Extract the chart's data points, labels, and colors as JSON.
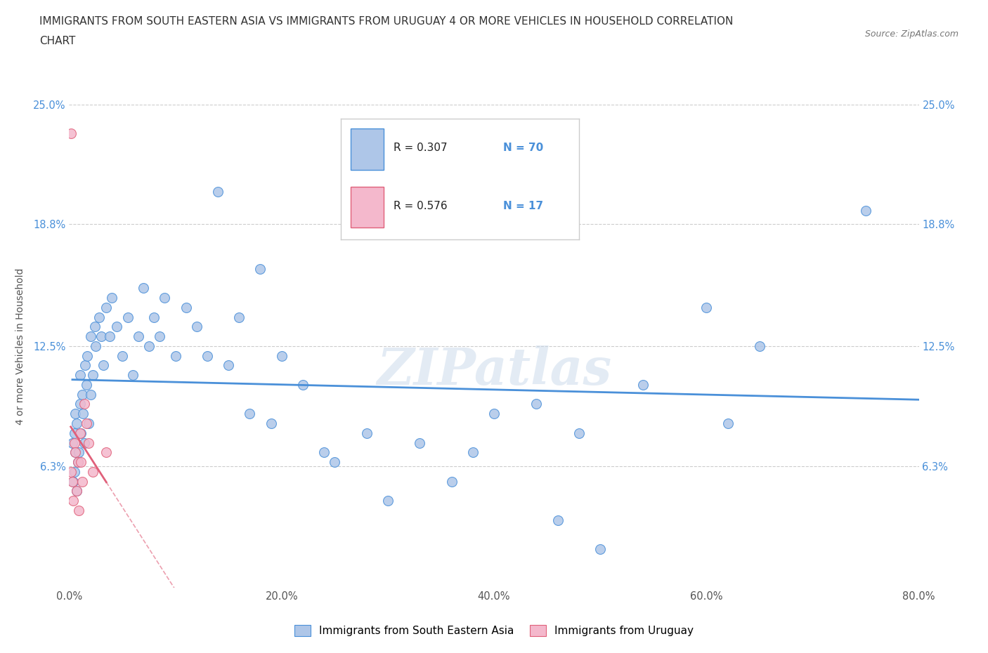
{
  "title_line1": "IMMIGRANTS FROM SOUTH EASTERN ASIA VS IMMIGRANTS FROM URUGUAY 4 OR MORE VEHICLES IN HOUSEHOLD CORRELATION",
  "title_line2": "CHART",
  "source_text": "Source: ZipAtlas.com",
  "ylabel": "4 or more Vehicles in Household",
  "legend_label1": "Immigrants from South Eastern Asia",
  "legend_label2": "Immigrants from Uruguay",
  "R1": 0.307,
  "N1": 70,
  "R2": 0.576,
  "N2": 17,
  "color1": "#aec6e8",
  "color2": "#f4b8cc",
  "line_color1": "#4a90d9",
  "line_color2": "#e0607a",
  "watermark": "ZIPatlas",
  "xlim": [
    0.0,
    80.0
  ],
  "ylim": [
    0.0,
    25.0
  ],
  "xticks": [
    0.0,
    20.0,
    40.0,
    60.0,
    80.0
  ],
  "yticks": [
    0.0,
    6.3,
    12.5,
    18.8,
    25.0
  ],
  "xtick_labels": [
    "0.0%",
    "20.0%",
    "40.0%",
    "60.0%",
    "80.0%"
  ],
  "ytick_labels": [
    "",
    "6.3%",
    "12.5%",
    "18.8%",
    "25.0%"
  ],
  "scatter1_x": [
    0.3,
    0.4,
    0.5,
    0.5,
    0.6,
    0.6,
    0.7,
    0.7,
    0.8,
    0.9,
    1.0,
    1.0,
    1.1,
    1.2,
    1.3,
    1.4,
    1.5,
    1.6,
    1.7,
    1.8,
    2.0,
    2.0,
    2.2,
    2.4,
    2.5,
    2.8,
    3.0,
    3.2,
    3.5,
    3.8,
    4.0,
    4.5,
    5.0,
    5.5,
    6.0,
    6.5,
    7.0,
    7.5,
    8.0,
    8.5,
    9.0,
    10.0,
    11.0,
    12.0,
    13.0,
    14.0,
    15.0,
    16.0,
    17.0,
    18.0,
    19.0,
    20.0,
    22.0,
    24.0,
    25.0,
    28.0,
    30.0,
    33.0,
    36.0,
    38.0,
    40.0,
    44.0,
    46.0,
    48.0,
    50.0,
    54.0,
    60.0,
    62.0,
    65.0,
    75.0
  ],
  "scatter1_y": [
    7.5,
    5.5,
    8.0,
    6.0,
    7.0,
    9.0,
    5.0,
    8.5,
    6.5,
    7.0,
    9.5,
    11.0,
    8.0,
    10.0,
    9.0,
    7.5,
    11.5,
    10.5,
    12.0,
    8.5,
    13.0,
    10.0,
    11.0,
    13.5,
    12.5,
    14.0,
    13.0,
    11.5,
    14.5,
    13.0,
    15.0,
    13.5,
    12.0,
    14.0,
    11.0,
    13.0,
    15.5,
    12.5,
    14.0,
    13.0,
    15.0,
    12.0,
    14.5,
    13.5,
    12.0,
    20.5,
    11.5,
    14.0,
    9.0,
    16.5,
    8.5,
    12.0,
    10.5,
    7.0,
    6.5,
    8.0,
    4.5,
    7.5,
    5.5,
    7.0,
    9.0,
    9.5,
    3.5,
    8.0,
    2.0,
    10.5,
    14.5,
    8.5,
    12.5,
    19.5
  ],
  "scatter2_x": [
    0.2,
    0.3,
    0.4,
    0.5,
    0.6,
    0.7,
    0.8,
    0.9,
    1.0,
    1.1,
    1.2,
    1.4,
    1.6,
    1.8,
    2.2,
    3.5,
    0.15
  ],
  "scatter2_y": [
    6.0,
    5.5,
    4.5,
    7.5,
    7.0,
    5.0,
    6.5,
    4.0,
    8.0,
    6.5,
    5.5,
    9.5,
    8.5,
    7.5,
    6.0,
    7.0,
    23.5
  ],
  "background_color": "#ffffff",
  "grid_color": "#cccccc",
  "title_fontsize": 11,
  "axis_label_fontsize": 10,
  "tick_fontsize": 10.5
}
